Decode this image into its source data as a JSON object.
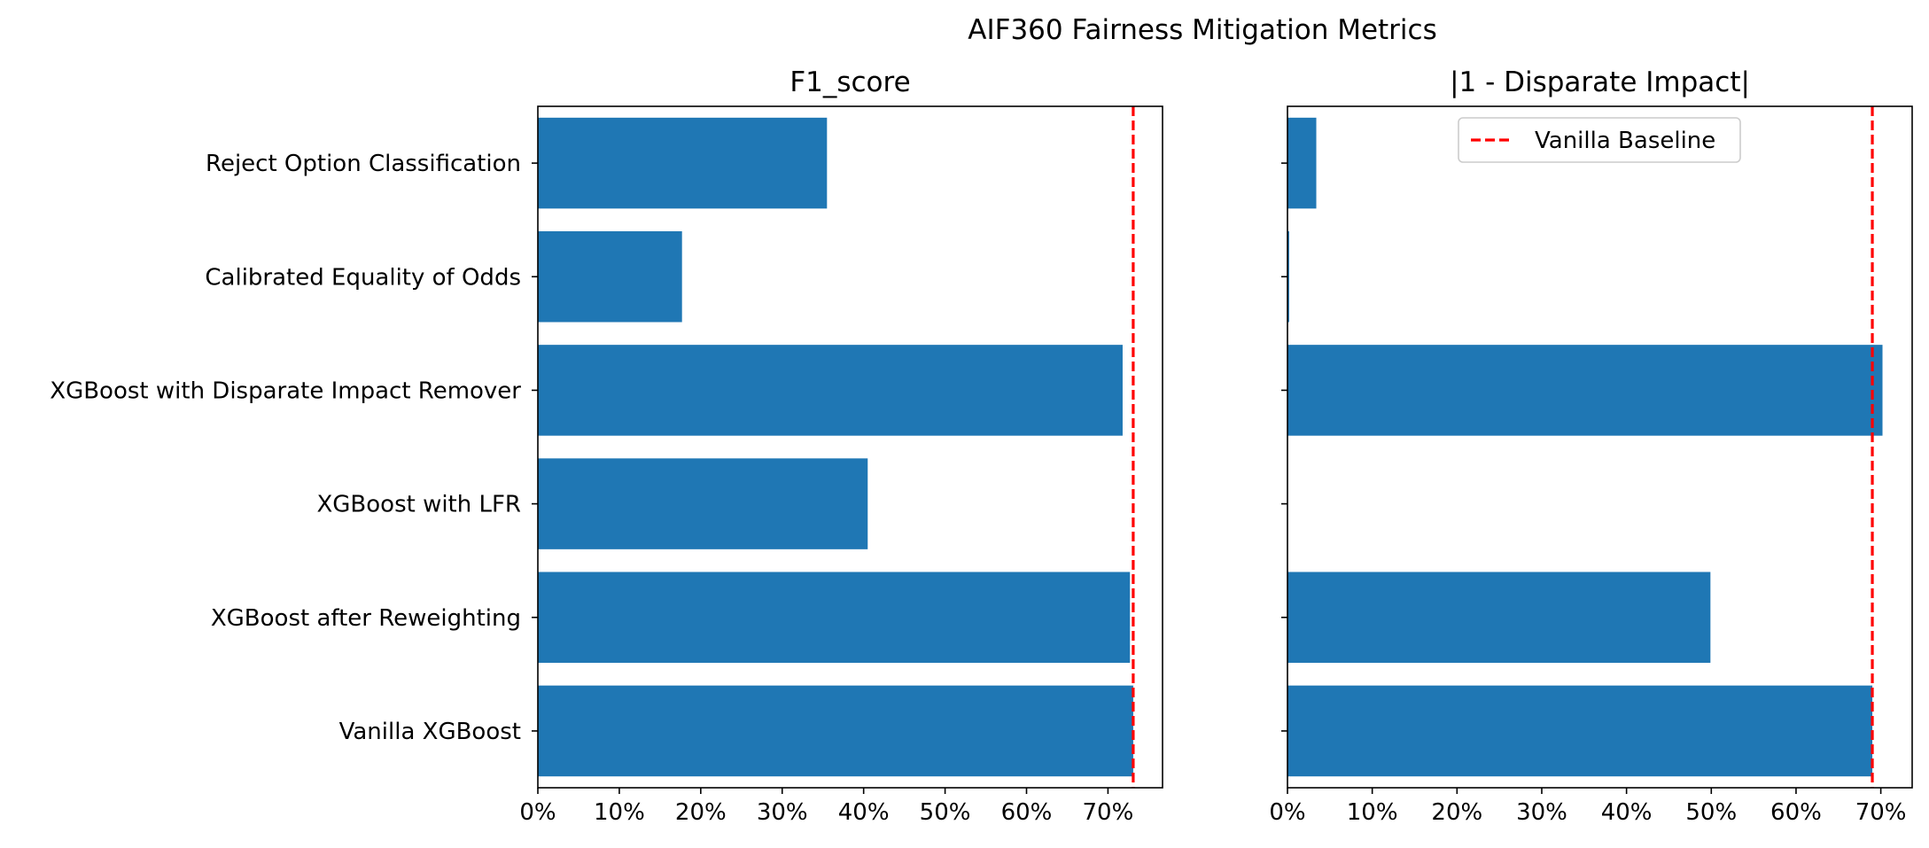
{
  "figure": {
    "suptitle": "AIF360 Fairness Mitigation Metrics"
  },
  "colors": {
    "bar": "#1f77b4",
    "baseline": "#ff0000",
    "axis": "#000000",
    "legend_border": "#cccccc"
  },
  "chart_data": [
    {
      "type": "bar",
      "orientation": "horizontal",
      "title": "F1_score",
      "xlabel": "",
      "ylabel": "",
      "categories": [
        "Reject Option Classification",
        "Calibrated Equality of Odds",
        "XGBoost with Disparate Impact Remover",
        "XGBoost with LFR",
        "XGBoost after Reweighting",
        "Vanilla XGBoost"
      ],
      "values": [
        0.355,
        0.177,
        0.718,
        0.405,
        0.727,
        0.731
      ],
      "xlim": [
        0,
        0.767
      ],
      "xticks": [
        0,
        0.1,
        0.2,
        0.3,
        0.4,
        0.5,
        0.6,
        0.7
      ],
      "xtick_labels": [
        "0%",
        "10%",
        "20%",
        "30%",
        "40%",
        "50%",
        "60%",
        "70%"
      ],
      "baseline": 0.731,
      "show_ytick_labels": true,
      "grid": false,
      "legend": null
    },
    {
      "type": "bar",
      "orientation": "horizontal",
      "title": "|1 - Disparate Impact|",
      "xlabel": "",
      "ylabel": "",
      "categories": [
        "Reject Option Classification",
        "Calibrated Equality of Odds",
        "XGBoost with Disparate Impact Remover",
        "XGBoost with LFR",
        "XGBoost after Reweighting",
        "Vanilla XGBoost"
      ],
      "values": [
        0.034,
        0.002,
        0.702,
        0.0,
        0.499,
        0.69
      ],
      "xlim": [
        0,
        0.737
      ],
      "xticks": [
        0,
        0.1,
        0.2,
        0.3,
        0.4,
        0.5,
        0.6,
        0.7
      ],
      "xtick_labels": [
        "0%",
        "10%",
        "20%",
        "30%",
        "40%",
        "50%",
        "60%",
        "70%"
      ],
      "baseline": 0.69,
      "show_ytick_labels": false,
      "grid": false,
      "legend": {
        "placement": "upper-center",
        "entries": [
          "Vanilla Baseline"
        ]
      }
    }
  ]
}
